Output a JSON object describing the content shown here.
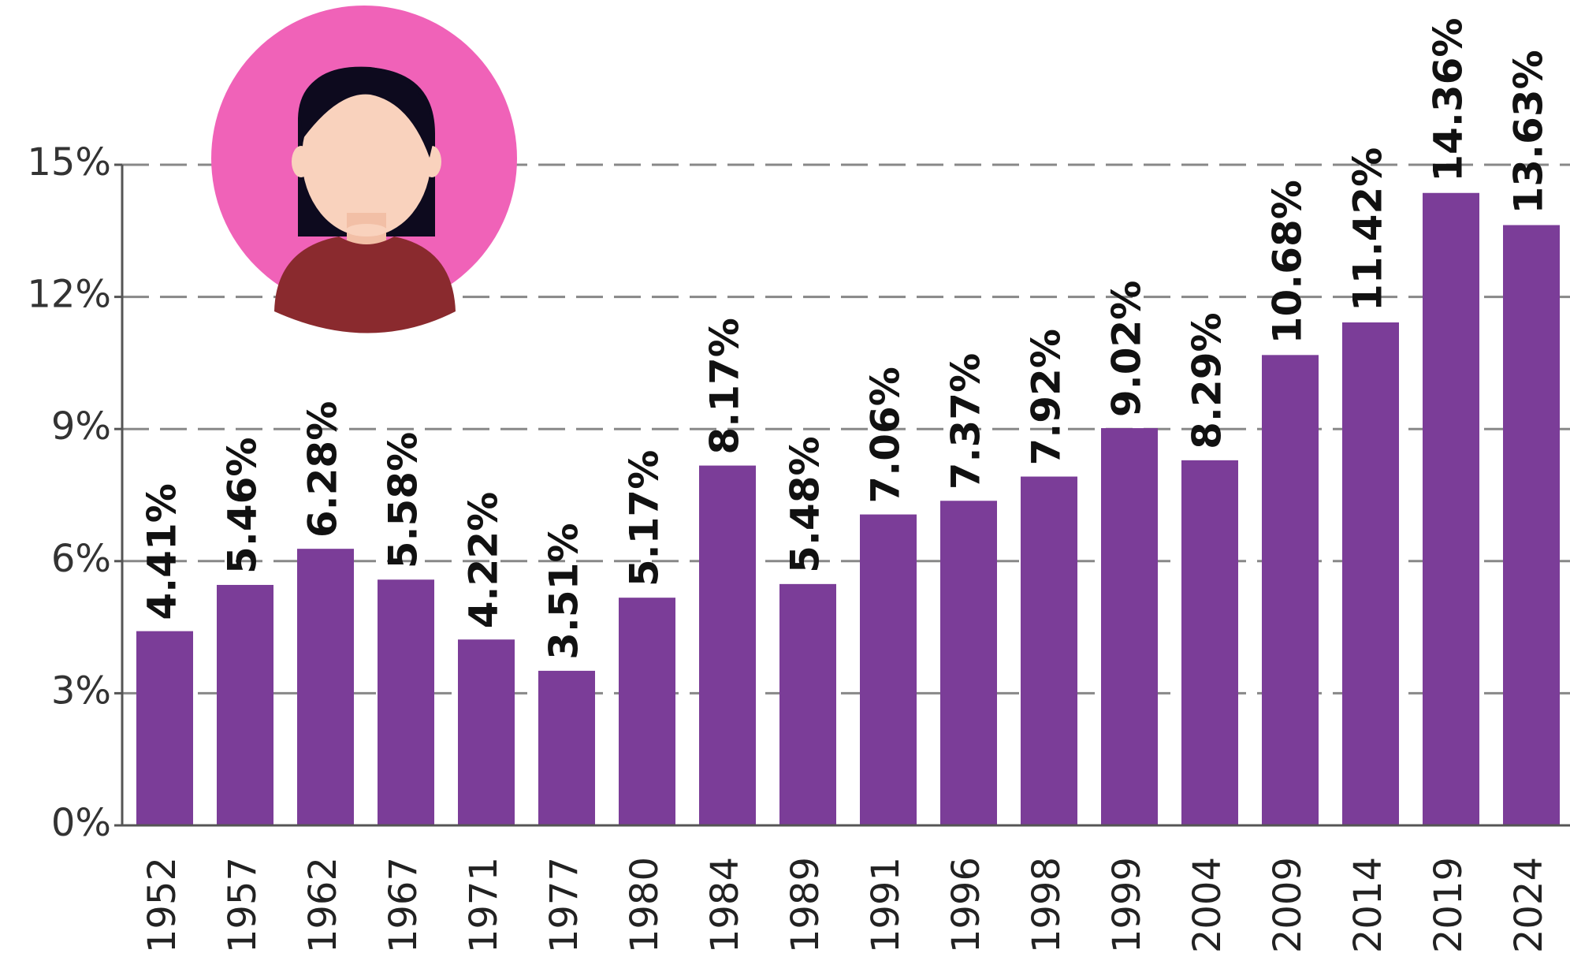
{
  "chart_data": {
    "type": "bar",
    "categories": [
      "1952",
      "1957",
      "1962",
      "1967",
      "1971",
      "1977",
      "1980",
      "1984",
      "1989",
      "1991",
      "1996",
      "1998",
      "1999",
      "2004",
      "2009",
      "2014",
      "2019",
      "2024"
    ],
    "values": [
      4.41,
      5.46,
      6.28,
      5.58,
      4.22,
      3.51,
      5.17,
      8.17,
      5.48,
      7.06,
      7.37,
      7.92,
      9.02,
      8.29,
      10.68,
      11.42,
      14.36,
      13.63
    ],
    "value_labels": [
      "4.41%",
      "5.46%",
      "6.28%",
      "5.58%",
      "4.22%",
      "3.51%",
      "5.17%",
      "8.17%",
      "5.48%",
      "7.06%",
      "7.37%",
      "7.92%",
      "9.02%",
      "8.29%",
      "10.68%",
      "11.42%",
      "14.36%",
      "13.63%"
    ],
    "color": "#7b3d98",
    "ylim": [
      0,
      15
    ],
    "yticks": [
      {
        "value": 0,
        "label": "0%"
      },
      {
        "value": 3,
        "label": "3%"
      },
      {
        "value": 6,
        "label": "6%"
      },
      {
        "value": 9,
        "label": "9%"
      },
      {
        "value": 12,
        "label": "12%"
      },
      {
        "value": 15,
        "label": "15%"
      }
    ],
    "grid": true
  }
}
